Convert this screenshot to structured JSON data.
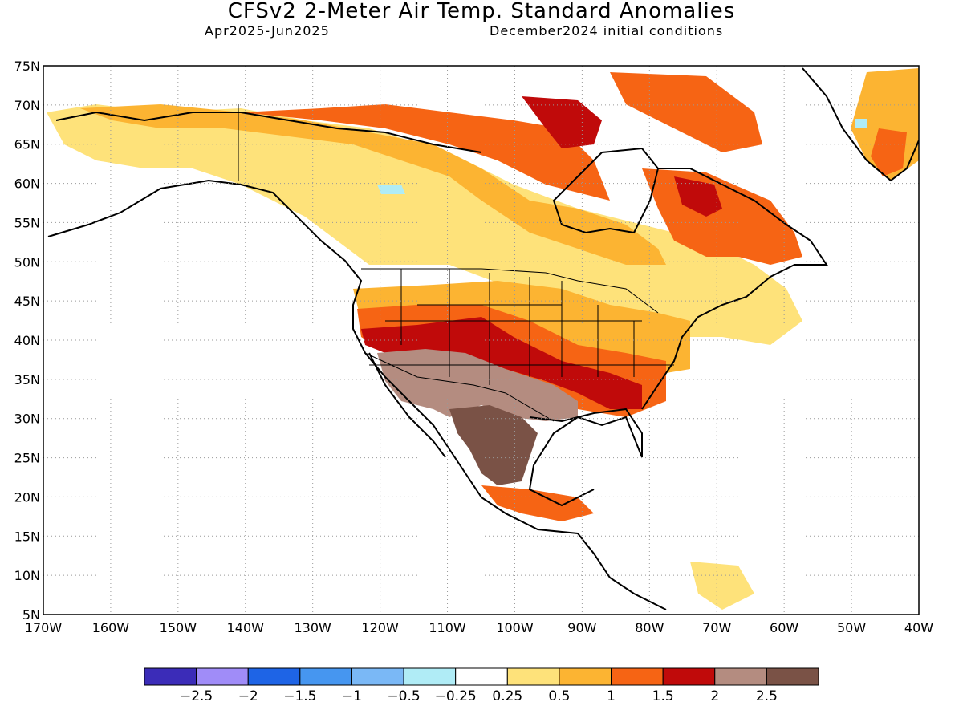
{
  "header": {
    "title": "CFSv2 2-Meter Air Temp. Standard Anomalies",
    "period": "Apr2025-Jun2025",
    "initial": "December2024 initial conditions"
  },
  "map": {
    "lat_labels": [
      "75N",
      "70N",
      "65N",
      "60N",
      "55N",
      "50N",
      "45N",
      "40N",
      "35N",
      "30N",
      "25N",
      "20N",
      "15N",
      "10N",
      "5N"
    ],
    "lon_labels": [
      "170W",
      "160W",
      "150W",
      "140W",
      "130W",
      "120W",
      "110W",
      "100W",
      "90W",
      "80W",
      "70W",
      "60W",
      "50W",
      "40W"
    ],
    "lon_range": [
      -170,
      -40
    ],
    "lat_range": [
      5,
      75
    ],
    "grid": "dotted"
  },
  "legend": {
    "colors": [
      "#3b2cb8",
      "#a08cf8",
      "#1e64e6",
      "#4696f0",
      "#7ab8f6",
      "#b0ecf6",
      "#ffffff",
      "#fee27a",
      "#fcb432",
      "#f66414",
      "#c00a0a",
      "#b48c80",
      "#7a5246"
    ],
    "labels": [
      "-2.5",
      "-2",
      "-1.5",
      "-1",
      "-0.5",
      "-0.25",
      "0.25",
      "0.5",
      "1",
      "1.5",
      "2",
      "2.5"
    ]
  }
}
